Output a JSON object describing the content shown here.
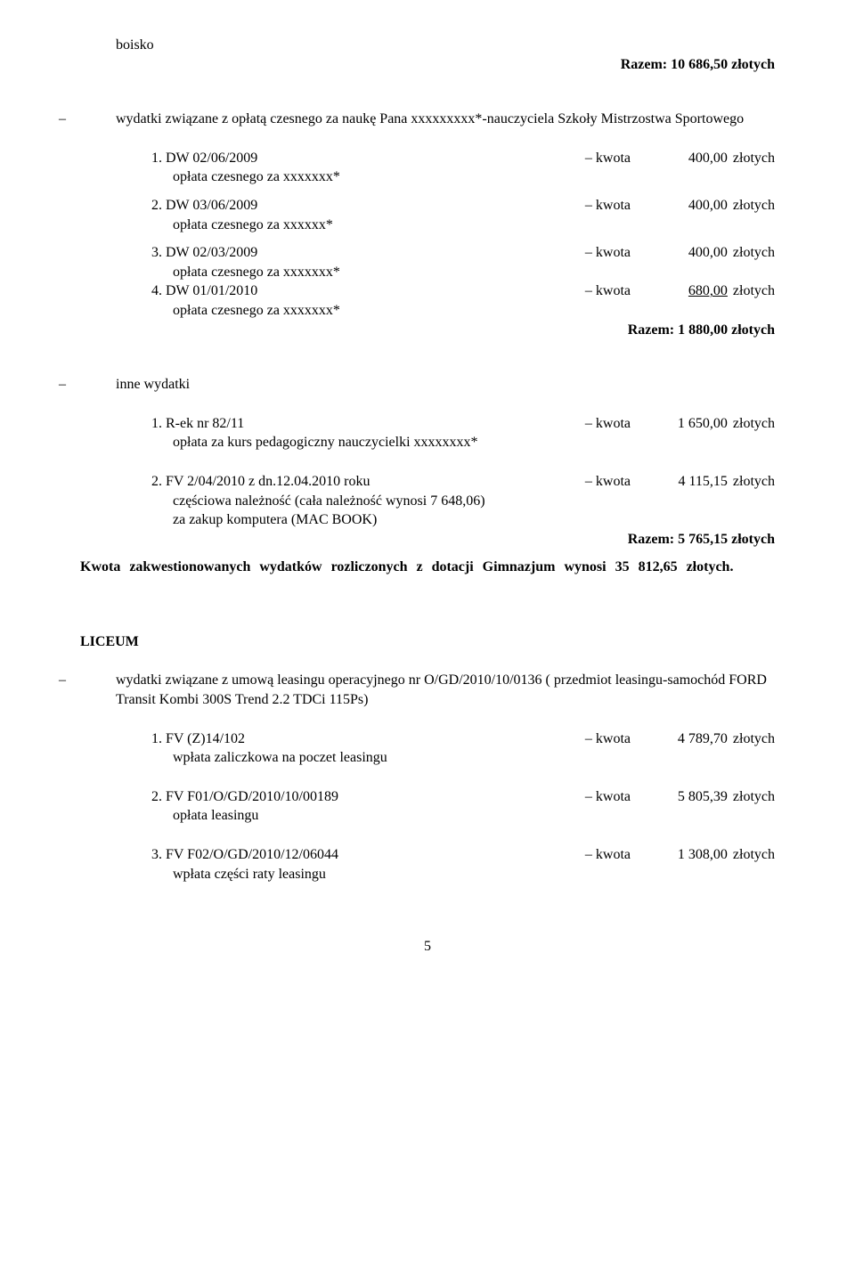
{
  "top": {
    "boisko": "boisko",
    "razem": "Razem: 10 686,50 złotych"
  },
  "sectionA": {
    "bullet": "wydatki związane z opłatą czesnego za naukę Pana xxxxxxxxx*-nauczyciela Szkoły Mistrzostwa Sportowego",
    "items": [
      {
        "num": "1. DW 02/06/2009",
        "sub": "opłata czesnego za xxxxxxx*",
        "kwota": "kwota",
        "val": "400,00",
        "unit": "złotych"
      },
      {
        "num": "2. DW 03/06/2009",
        "sub": "opłata czesnego za xxxxxx*",
        "kwota": "kwota",
        "val": "400,00",
        "unit": "złotych"
      },
      {
        "num": "3. DW 02/03/2009",
        "sub": "opłata czesnego za xxxxxxx*",
        "kwota": "kwota",
        "val": "400,00",
        "unit": "złotych"
      },
      {
        "num": "4. DW 01/01/2010",
        "sub": "opłata czesnego za xxxxxxx*",
        "kwota": "kwota",
        "val": "680,00",
        "unit": "złotych",
        "underline": true
      }
    ],
    "razem": "Razem: 1 880,00 złotych"
  },
  "sectionB": {
    "bullet": "inne wydatki",
    "item1": {
      "num": "1. R-ek nr 82/11",
      "sub": "opłata za kurs pedagogiczny nauczycielki xxxxxxxx*",
      "kwota": "kwota",
      "val": "1 650,00",
      "unit": "złotych"
    },
    "item2": {
      "num": "2. FV 2/04/2010 z dn.12.04.2010 roku",
      "sub1": "częściowa należność (cała należność wynosi 7 648,06)",
      "sub2": "za zakup komputera (MAC BOOK)",
      "kwota": "kwota",
      "val": "4 115,15",
      "unit": "złotych"
    },
    "razem": "Razem: 5 765,15 złotych"
  },
  "summary": "Kwota zakwestionowanych wydatków rozliczonych z dotacji Gimnazjum wynosi 35 812,65 złotych.",
  "liceum": {
    "heading": "LICEUM",
    "bullet": "wydatki związane z umową leasingu operacyjnego nr O/GD/2010/10/0136 ( przedmiot leasingu-samochód FORD Transit Kombi 300S Trend 2.2 TDCi 115Ps)",
    "items": [
      {
        "num": "1. FV (Z)14/102",
        "sub": "wpłata zaliczkowa na poczet leasingu",
        "kwota": "kwota",
        "val": "4 789,70",
        "unit": "złotych"
      },
      {
        "num": "2. FV F01/O/GD/2010/10/00189",
        "sub": "opłata leasingu",
        "kwota": "kwota",
        "val": "5 805,39",
        "unit": "złotych"
      },
      {
        "num": "3. FV F02/O/GD/2010/12/06044",
        "sub": "wpłata części raty leasingu",
        "kwota": "kwota",
        "val": "1 308,00",
        "unit": "złotych"
      }
    ]
  },
  "pagenum": "5"
}
